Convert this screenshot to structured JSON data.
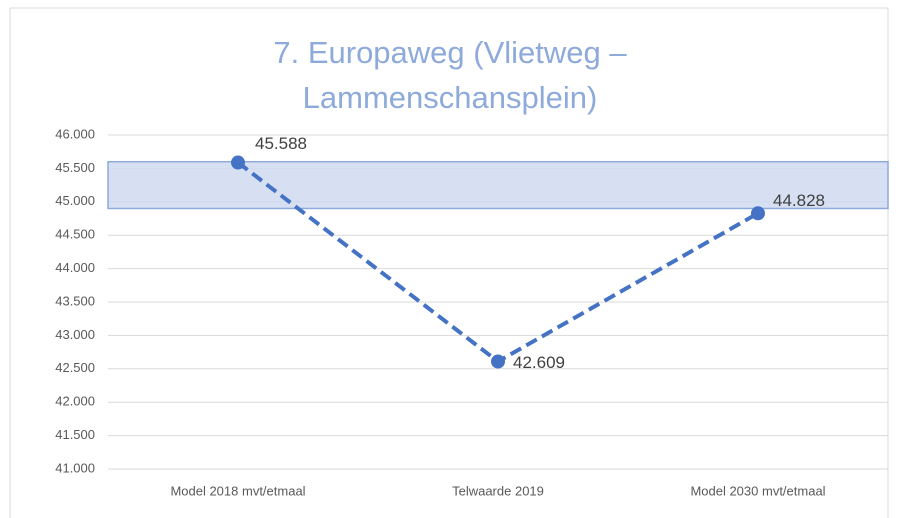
{
  "chart_data": {
    "type": "line",
    "title": "7. Europaweg (Vlietweg – Lammenschansplein)",
    "categories": [
      "Model 2018 mvt/etmaal",
      "Telwaarde 2019",
      "Model 2030 mvt/etmaal"
    ],
    "series": [
      {
        "color": "#4472c4",
        "values": [
          45588,
          42609,
          44828
        ],
        "value_labels": [
          "45.588",
          "42.609",
          "44.828"
        ]
      }
    ],
    "band": {
      "range": [
        44900,
        45600
      ],
      "color": "#cfdaf0",
      "border": "#8eaadb"
    },
    "ylim": [
      41000,
      46000
    ],
    "yticks": [
      {
        "value": 41000,
        "label": "41.000"
      },
      {
        "value": 41500,
        "label": "41.500"
      },
      {
        "value": 42000,
        "label": "42.000"
      },
      {
        "value": 42500,
        "label": "42.500"
      },
      {
        "value": 43000,
        "label": "43.000"
      },
      {
        "value": 43500,
        "label": "43.500"
      },
      {
        "value": 44000,
        "label": "44.000"
      },
      {
        "value": 44500,
        "label": "44.500"
      },
      {
        "value": 45000,
        "label": "45.000"
      },
      {
        "value": 45500,
        "label": "45.500"
      },
      {
        "value": 46000,
        "label": "46.000"
      }
    ],
    "grid": true
  }
}
